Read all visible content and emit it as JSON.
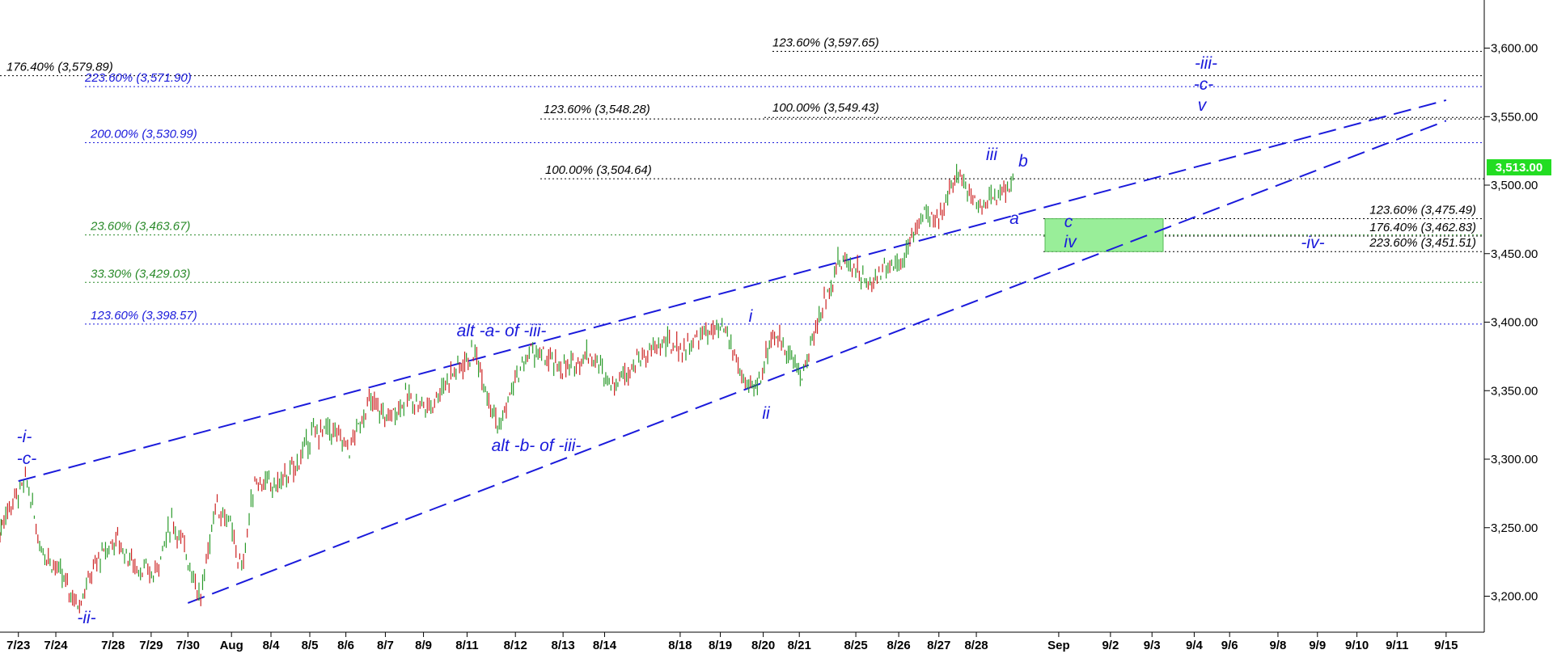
{
  "chart_data": {
    "type": "line",
    "title": "",
    "xlabel": "",
    "ylabel": "",
    "ylim": [
      3180,
      3640
    ],
    "y_ticks": [
      "3,200.00",
      "3,250.00",
      "3,300.00",
      "3,350.00",
      "3,400.00",
      "3,450.00",
      "3,500.00",
      "3,550.00",
      "3,600.00"
    ],
    "x_ticks": [
      "7/23",
      "7/24",
      "7/28",
      "7/29",
      "7/30",
      "Aug",
      "8/4",
      "8/5",
      "8/6",
      "8/7",
      "8/9",
      "8/11",
      "8/12",
      "8/13",
      "8/14",
      "8/18",
      "8/19",
      "8/20",
      "8/21",
      "8/25",
      "8/26",
      "8/27",
      "8/28",
      "Sep",
      "9/2",
      "9/3",
      "9/4",
      "9/6",
      "9/8",
      "9/9",
      "9/10",
      "9/11",
      "9/15"
    ],
    "last_price": {
      "value": 3513,
      "label": "3,513.00"
    },
    "colors": {
      "up": "#2a9a2a",
      "down": "#cc2222",
      "wave": "#1a1adb",
      "fib_blue": "#1a1adb",
      "fib_green": "#2a8a2a",
      "fib_black": "#000000",
      "box": "#99ee99",
      "price_tag": "#22dd22"
    },
    "price_series": [
      {
        "t": "7/23",
        "v": 3255
      },
      {
        "t": "7/23",
        "v": 3272
      },
      {
        "t": "7/23",
        "v": 3284
      },
      {
        "t": "7/24",
        "v": 3238
      },
      {
        "t": "7/24",
        "v": 3218
      },
      {
        "t": "7/24",
        "v": 3194
      },
      {
        "t": "7/28",
        "v": 3225
      },
      {
        "t": "7/28",
        "v": 3242
      },
      {
        "t": "7/29",
        "v": 3222
      },
      {
        "t": "7/29",
        "v": 3215
      },
      {
        "t": "7/30",
        "v": 3255
      },
      {
        "t": "7/30",
        "v": 3232
      },
      {
        "t": "7/30",
        "v": 3198
      },
      {
        "t": "Aug",
        "v": 3268
      },
      {
        "t": "Aug",
        "v": 3255
      },
      {
        "t": "Aug",
        "v": 3218
      },
      {
        "t": "8/4",
        "v": 3285
      },
      {
        "t": "8/4",
        "v": 3280
      },
      {
        "t": "8/5",
        "v": 3292
      },
      {
        "t": "8/5",
        "v": 3318
      },
      {
        "t": "8/6",
        "v": 3322
      },
      {
        "t": "8/6",
        "v": 3308
      },
      {
        "t": "8/7",
        "v": 3342
      },
      {
        "t": "8/7",
        "v": 3330
      },
      {
        "t": "8/9",
        "v": 3345
      },
      {
        "t": "8/9",
        "v": 3338
      },
      {
        "t": "8/11",
        "v": 3362
      },
      {
        "t": "8/11",
        "v": 3378
      },
      {
        "t": "8/12",
        "v": 3322
      },
      {
        "t": "8/12",
        "v": 3358
      },
      {
        "t": "8/12",
        "v": 3380
      },
      {
        "t": "8/13",
        "v": 3372
      },
      {
        "t": "8/13",
        "v": 3365
      },
      {
        "t": "8/14",
        "v": 3378
      },
      {
        "t": "8/14",
        "v": 3355
      },
      {
        "t": "8/14",
        "v": 3372
      },
      {
        "t": "8/18",
        "v": 3385
      },
      {
        "t": "8/18",
        "v": 3380
      },
      {
        "t": "8/19",
        "v": 3392
      },
      {
        "t": "8/19",
        "v": 3394
      },
      {
        "t": "8/20",
        "v": 3350
      },
      {
        "t": "8/20",
        "v": 3356
      },
      {
        "t": "8/20",
        "v": 3390
      },
      {
        "t": "8/21",
        "v": 3385
      },
      {
        "t": "8/21",
        "v": 3360
      },
      {
        "t": "8/21",
        "v": 3408
      },
      {
        "t": "8/25",
        "v": 3445
      },
      {
        "t": "8/25",
        "v": 3442
      },
      {
        "t": "8/25",
        "v": 3425
      },
      {
        "t": "8/26",
        "v": 3440
      },
      {
        "t": "8/26",
        "v": 3445
      },
      {
        "t": "8/27",
        "v": 3480
      },
      {
        "t": "8/27",
        "v": 3470
      },
      {
        "t": "8/27",
        "v": 3495
      },
      {
        "t": "8/28",
        "v": 3508
      },
      {
        "t": "8/28",
        "v": 3485
      },
      {
        "t": "8/28",
        "v": 3492
      },
      {
        "t": "8/28",
        "v": 3505
      }
    ],
    "fib_levels": [
      {
        "label": "123.60% (3,597.65)",
        "value": 3597.65,
        "color": "black"
      },
      {
        "label": "176.40% (3,579.89)",
        "value": 3579.89,
        "color": "black"
      },
      {
        "label": "223.60% (3,571.90)",
        "value": 3571.9,
        "color": "blue"
      },
      {
        "label": "123.60% (3,548.28)",
        "value": 3548.28,
        "color": "black"
      },
      {
        "label": "100.00% (3,549.43)",
        "value": 3549.43,
        "color": "black"
      },
      {
        "label": "200.00% (3,530.99)",
        "value": 3530.99,
        "color": "blue"
      },
      {
        "label": "100.00% (3,504.64)",
        "value": 3504.64,
        "color": "black"
      },
      {
        "label": "123.60% (3,475.49)",
        "value": 3475.49,
        "color": "black"
      },
      {
        "label": "23.60% (3,463.67)",
        "value": 3463.67,
        "color": "green"
      },
      {
        "label": "176.40% (3,462.83)",
        "value": 3462.83,
        "color": "black"
      },
      {
        "label": "223.60% (3,451.51)",
        "value": 3451.51,
        "color": "black"
      },
      {
        "label": "33.30% (3,429.03)",
        "value": 3429.03,
        "color": "green"
      },
      {
        "label": "123.60% (3,398.57)",
        "value": 3398.57,
        "color": "blue"
      }
    ],
    "target_box": {
      "y_low": 3451.51,
      "y_high": 3475.49
    },
    "channel_lines": [
      {
        "from": {
          "t": "7/23",
          "v": 3284
        },
        "to": {
          "t": "9/15",
          "v": 3562
        }
      },
      {
        "from": {
          "t": "7/30",
          "v": 3195
        },
        "to": {
          "t": "9/15",
          "v": 3547
        }
      }
    ],
    "wave_labels": [
      "-i-",
      "-c-",
      "-ii-",
      "alt -a- of -iii-",
      "alt -b- of -iii-",
      "i",
      "ii",
      "iii",
      "a",
      "b",
      "c",
      "iv",
      "-iv-",
      "-iii-",
      "-c-",
      "v"
    ]
  }
}
